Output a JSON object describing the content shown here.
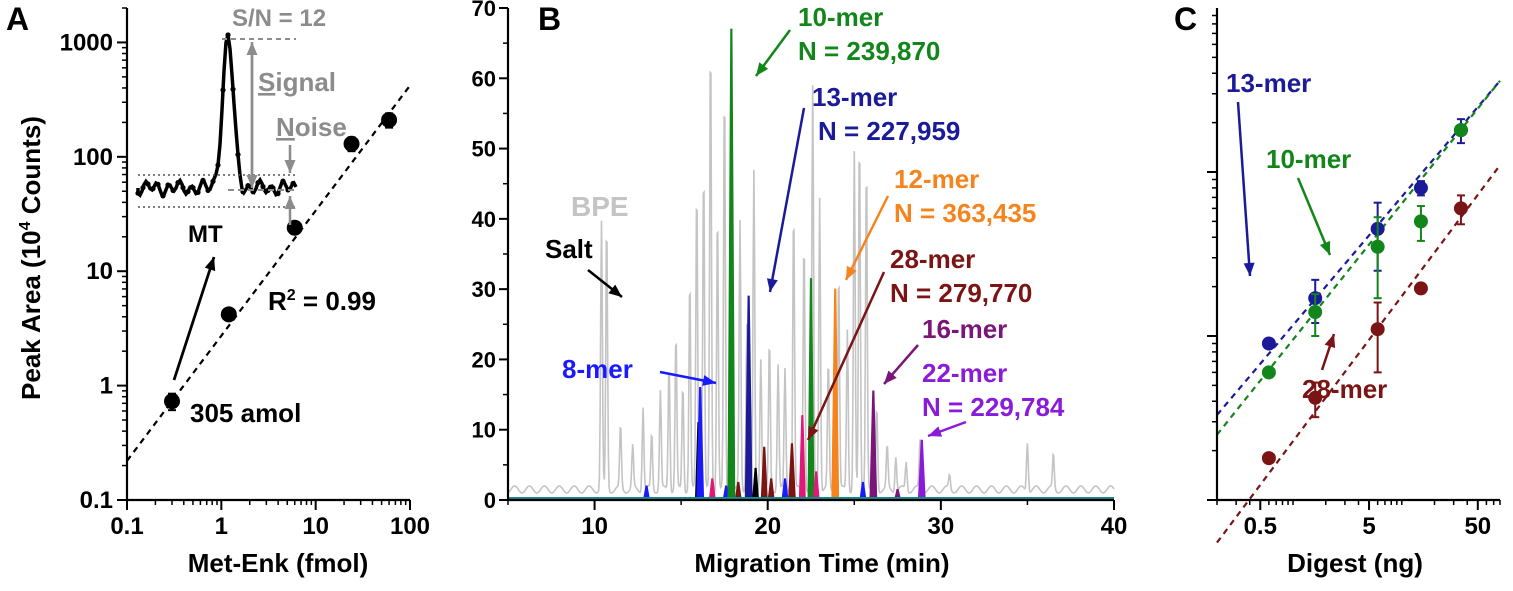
{
  "chart_data": [
    {
      "panel": "A",
      "type": "scatter",
      "panel_label": "A",
      "xlabel": "Met-Enk (fmol)",
      "ylabel_main": "Peak Area (10",
      "ylabel_sup": "4",
      "ylabel_end": " Counts)",
      "x_scale": "log",
      "y_scale": "log",
      "xlim": [
        0.1,
        100
      ],
      "ylim": [
        0.1,
        2000
      ],
      "x_ticks": [
        "0.1",
        "1",
        "10",
        "100"
      ],
      "y_ticks": [
        "0.1",
        "1",
        "10",
        "100",
        "1000"
      ],
      "points": [
        {
          "x": 0.3,
          "y": 0.73,
          "err": 0.12
        },
        {
          "x": 1.2,
          "y": 4.2,
          "err": 0
        },
        {
          "x": 6,
          "y": 24,
          "err": 0
        },
        {
          "x": 24,
          "y": 130,
          "err": 18
        },
        {
          "x": 60,
          "y": 210,
          "err": 30
        }
      ],
      "fit_line": {
        "x": [
          0.1,
          100
        ],
        "y": [
          0.22,
          420
        ]
      },
      "annotations": {
        "r2_main": "R",
        "r2_sup": "2",
        "r2_end": " = 0.99",
        "amount": "305 amol",
        "mt": "MT",
        "sn": "S/N = 12",
        "signal_initial": "S",
        "signal_rest": "ignal",
        "noise_initial": "N",
        "noise_rest": "oise"
      },
      "colors": {
        "points": "#000000",
        "inset_annotation": "#8c8c8c"
      }
    },
    {
      "panel": "B",
      "type": "line",
      "panel_label": "B",
      "xlabel": "Migration Time (min)",
      "xlim": [
        5,
        40
      ],
      "ylim": [
        0,
        70
      ],
      "x_ticks": [
        "10",
        "20",
        "30",
        "40"
      ],
      "y_ticks": [
        "0",
        "10",
        "20",
        "30",
        "40",
        "50",
        "60",
        "70"
      ],
      "series": [
        {
          "name": "BPE",
          "color": "#c4c4c4"
        },
        {
          "name": "Salt",
          "color": "#000000"
        }
      ],
      "peaks": [
        {
          "label": "8-mer",
          "color": "#1a1aff",
          "x": 16.1,
          "y": 16
        },
        {
          "label": "10-mer",
          "efficiency": "N = 239,870",
          "color": "#12861a",
          "x": 17.9,
          "y": 67
        },
        {
          "label": "13-mer",
          "efficiency": "N = 227,959",
          "color": "#1b1b99",
          "x": 18.9,
          "y": 29
        },
        {
          "label": "12-mer",
          "efficiency": "N = 363,435",
          "color": "#f5841f",
          "x": 23.9,
          "y": 30
        },
        {
          "label": "28-mer",
          "efficiency": "N = 279,770",
          "color": "#7b1414",
          "x": 21.4,
          "y": 8
        },
        {
          "label": "16-mer",
          "color": "#7a157a",
          "x": 26.1,
          "y": 15.5
        },
        {
          "label": "22-mer",
          "efficiency": "N = 229,784",
          "color": "#8a1bd9",
          "x": 28.9,
          "y": 8.5
        }
      ],
      "other_peaks": [
        {
          "x": 16.0,
          "y": 11,
          "color": "#000000"
        },
        {
          "x": 22.5,
          "y": 31.5,
          "color": "#12861a"
        },
        {
          "x": 22.0,
          "y": 12,
          "color": "#e0187a"
        },
        {
          "x": 22.8,
          "y": 4,
          "color": "#e0187a"
        },
        {
          "x": 16.8,
          "y": 3,
          "color": "#e0187a"
        },
        {
          "x": 17.6,
          "y": 2,
          "color": "#1a1aff"
        },
        {
          "x": 18.3,
          "y": 2.5,
          "color": "#7b1414"
        },
        {
          "x": 19.3,
          "y": 4.5,
          "color": "#000000"
        },
        {
          "x": 19.8,
          "y": 7.5,
          "color": "#7b1414"
        },
        {
          "x": 20.2,
          "y": 3,
          "color": "#7b1414"
        },
        {
          "x": 21.0,
          "y": 3,
          "color": "#1a1aff"
        },
        {
          "x": 25.5,
          "y": 2.5,
          "color": "#1a1aff"
        },
        {
          "x": 27.5,
          "y": 1.5,
          "color": "#7a157a"
        },
        {
          "x": 13.0,
          "y": 2,
          "color": "#1a1aff"
        }
      ],
      "bpe_peaks": [
        [
          10.4,
          38
        ],
        [
          10.7,
          38
        ],
        [
          11.5,
          9
        ],
        [
          12.2,
          6
        ],
        [
          12.8,
          12
        ],
        [
          13.3,
          8
        ],
        [
          13.8,
          14
        ],
        [
          14.3,
          18
        ],
        [
          14.7,
          22
        ],
        [
          15.1,
          15
        ],
        [
          15.5,
          30
        ],
        [
          15.9,
          43
        ],
        [
          16.3,
          46
        ],
        [
          16.7,
          64
        ],
        [
          17.1,
          40
        ],
        [
          17.5,
          57
        ],
        [
          17.9,
          66
        ],
        [
          18.4,
          38
        ],
        [
          18.8,
          24
        ],
        [
          19.2,
          45
        ],
        [
          19.6,
          19
        ],
        [
          20.1,
          21
        ],
        [
          20.6,
          18
        ],
        [
          21.0,
          17
        ],
        [
          21.5,
          40
        ],
        [
          22.1,
          36
        ],
        [
          22.6,
          57
        ],
        [
          23.0,
          42
        ],
        [
          23.5,
          18
        ],
        [
          24.1,
          31
        ],
        [
          24.6,
          23
        ],
        [
          25.0,
          48
        ],
        [
          25.3,
          50
        ],
        [
          25.7,
          47
        ],
        [
          26.3,
          12
        ],
        [
          26.9,
          6
        ],
        [
          27.4,
          5
        ],
        [
          28.0,
          4
        ],
        [
          28.8,
          7
        ],
        [
          30.5,
          2
        ],
        [
          35.0,
          7
        ],
        [
          36.5,
          5
        ]
      ]
    },
    {
      "panel": "C",
      "type": "scatter",
      "panel_label": "C",
      "xlabel": "Digest (ng)",
      "x_scale": "log",
      "y_scale": "log",
      "xlim": [
        0.2,
        80
      ],
      "ylim": [
        0.1,
        100
      ],
      "x_ticks": [
        "0.5",
        "5",
        "50"
      ],
      "series": [
        {
          "name": "13-mer",
          "color": "#1b1b99",
          "points": [
            {
              "x": 0.6,
              "y": 0.9,
              "err": 0
            },
            {
              "x": 1.6,
              "y": 1.7,
              "err": 0.5
            },
            {
              "x": 6,
              "y": 4.5,
              "err": 2
            },
            {
              "x": 15,
              "y": 8,
              "err": 0.8
            },
            {
              "x": 35,
              "y": 18,
              "err": 3
            }
          ],
          "fit": {
            "x": [
              0.2,
              80
            ],
            "y": [
              0.33,
              36
            ]
          }
        },
        {
          "name": "10-mer",
          "color": "#12861a",
          "points": [
            {
              "x": 0.6,
              "y": 0.6,
              "err": 0
            },
            {
              "x": 1.6,
              "y": 1.4,
              "err": 0.4
            },
            {
              "x": 6,
              "y": 3.5,
              "err": 1.8
            },
            {
              "x": 15,
              "y": 5,
              "err": 1.2
            },
            {
              "x": 35,
              "y": 18,
              "err": 0
            }
          ],
          "fit": {
            "x": [
              0.2,
              80
            ],
            "y": [
              0.25,
              36
            ]
          }
        },
        {
          "name": "28-mer",
          "color": "#7b1414",
          "points": [
            {
              "x": 0.6,
              "y": 0.18,
              "err": 0
            },
            {
              "x": 1.6,
              "y": 0.42,
              "err": 0.1
            },
            {
              "x": 6,
              "y": 1.1,
              "err": 0.5
            },
            {
              "x": 15,
              "y": 1.95,
              "err": 0
            },
            {
              "x": 35,
              "y": 6,
              "err": 1.2
            }
          ],
          "fit": {
            "x": [
              0.2,
              80
            ],
            "y": [
              0.055,
              11
            ]
          }
        }
      ]
    }
  ]
}
